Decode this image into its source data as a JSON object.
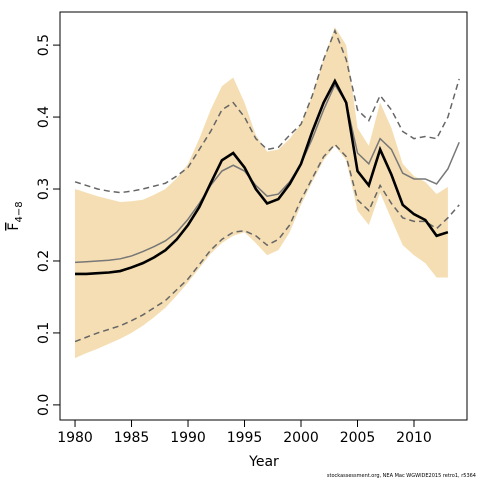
{
  "chart_data": {
    "type": "line",
    "x_label": "Year",
    "y_label": "F",
    "y_label_sub": "4−8",
    "footnote": "stockassessment.org, NEA Mac WGWIDE2015 retro1, r5364",
    "x": [
      1980,
      1981,
      1982,
      1983,
      1984,
      1985,
      1986,
      1987,
      1988,
      1989,
      1990,
      1991,
      1992,
      1993,
      1994,
      1995,
      1996,
      1997,
      1998,
      1999,
      2000,
      2001,
      2002,
      2003,
      2004,
      2005,
      2006,
      2007,
      2008,
      2009,
      2010,
      2011,
      2012,
      2013,
      2014
    ],
    "xlim": [
      1978.67,
      2014.69
    ],
    "xticks": [
      1980,
      1985,
      1990,
      1995,
      2000,
      2005,
      2010
    ],
    "ylim": [
      -0.021,
      0.546
    ],
    "yticks": [
      {
        "value": 0,
        "label": "0.0"
      },
      0.1,
      0.2,
      0.3,
      0.4,
      0.5
    ],
    "band": {
      "color": "#f5deb3",
      "upper": [
        0.3,
        0.295,
        0.29,
        0.286,
        0.282,
        0.283,
        0.285,
        0.292,
        0.3,
        0.315,
        0.335,
        0.37,
        0.41,
        0.443,
        0.455,
        0.42,
        0.375,
        0.352,
        0.355,
        0.37,
        0.39,
        0.43,
        0.48,
        0.525,
        0.5,
        0.385,
        0.36,
        0.42,
        0.385,
        0.335,
        0.318,
        0.31,
        0.293,
        0.303,
        null
      ],
      "lower": [
        0.065,
        0.072,
        0.078,
        0.085,
        0.092,
        0.1,
        0.11,
        0.122,
        0.135,
        0.152,
        0.17,
        0.19,
        0.21,
        0.225,
        0.235,
        0.24,
        0.225,
        0.208,
        0.215,
        0.24,
        0.278,
        0.31,
        0.34,
        0.36,
        0.34,
        0.27,
        0.25,
        0.295,
        0.258,
        0.222,
        0.208,
        0.197,
        0.177,
        0.177,
        null
      ]
    },
    "series": [
      {
        "color": "#666666",
        "style": "dashed",
        "values": [
          0.31,
          0.305,
          0.3,
          0.297,
          0.295,
          0.297,
          0.3,
          0.304,
          0.308,
          0.318,
          0.33,
          0.355,
          0.38,
          0.41,
          0.42,
          0.4,
          0.37,
          0.355,
          0.358,
          0.375,
          0.39,
          0.43,
          0.48,
          0.52,
          0.48,
          0.41,
          0.395,
          0.43,
          0.41,
          0.38,
          0.37,
          0.373,
          0.37,
          0.4,
          0.453
        ]
      },
      {
        "color": "#666666",
        "style": "dashed",
        "values": [
          0.088,
          0.094,
          0.1,
          0.105,
          0.11,
          0.117,
          0.125,
          0.135,
          0.145,
          0.16,
          0.175,
          0.195,
          0.215,
          0.23,
          0.24,
          0.242,
          0.235,
          0.222,
          0.23,
          0.25,
          0.285,
          0.315,
          0.345,
          0.362,
          0.345,
          0.285,
          0.27,
          0.305,
          0.28,
          0.26,
          0.255,
          0.255,
          0.245,
          0.26,
          0.278
        ]
      },
      {
        "color": "#777777",
        "style": "solid",
        "values": [
          0.198,
          0.199,
          0.2,
          0.201,
          0.203,
          0.207,
          0.213,
          0.22,
          0.228,
          0.24,
          0.258,
          0.28,
          0.305,
          0.325,
          0.333,
          0.325,
          0.305,
          0.29,
          0.293,
          0.31,
          0.335,
          0.37,
          0.41,
          0.445,
          0.42,
          0.35,
          0.335,
          0.37,
          0.355,
          0.322,
          0.314,
          0.314,
          0.307,
          0.328,
          0.365
        ]
      },
      {
        "color": "#000000",
        "style": "bold",
        "values": [
          0.182,
          0.182,
          0.183,
          0.184,
          0.186,
          0.191,
          0.197,
          0.205,
          0.215,
          0.23,
          0.25,
          0.275,
          0.308,
          0.34,
          0.35,
          0.33,
          0.3,
          0.28,
          0.286,
          0.307,
          0.335,
          0.38,
          0.42,
          0.45,
          0.42,
          0.325,
          0.305,
          0.355,
          0.32,
          0.278,
          0.265,
          0.257,
          0.235,
          0.24,
          null
        ]
      }
    ]
  }
}
